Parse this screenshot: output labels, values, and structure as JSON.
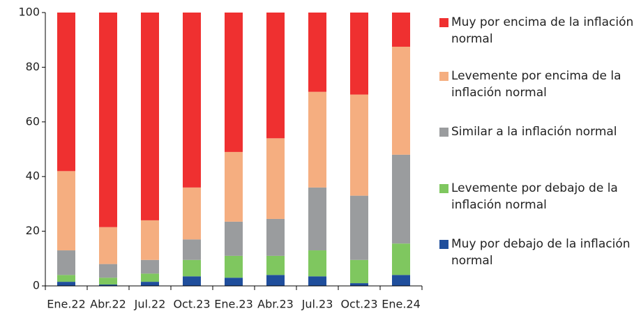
{
  "chart_data": {
    "type": "stacked_bar",
    "categories": [
      "Ene.22",
      "Abr.22",
      "Jul.22",
      "Oct.23",
      "Ene.23",
      "Abr.23",
      "Jul.23",
      "Oct.23",
      "Ene.24"
    ],
    "series": [
      {
        "name": "Muy por debajo de la inflación normal",
        "color": "#1f4e9c",
        "values": [
          1.5,
          0.5,
          1.5,
          3.5,
          3,
          4,
          3.5,
          1,
          4
        ]
      },
      {
        "name": "Levemente por debajo de la inflación normal",
        "color": "#7fc75f",
        "values": [
          2.5,
          2.5,
          3,
          6,
          8,
          7,
          9.5,
          8.5,
          11.5
        ]
      },
      {
        "name": "Similar a la inflación normal",
        "color": "#9a9c9e",
        "values": [
          9,
          5,
          5,
          7.5,
          12.5,
          13.5,
          23,
          23.5,
          32.5
        ]
      },
      {
        "name": "Levemente por encima de la inflación normal",
        "color": "#f5ae80",
        "values": [
          29,
          13.5,
          14.5,
          19,
          25.5,
          29.5,
          35,
          37,
          39.5
        ]
      },
      {
        "name": "Muy por encima de la inflación normal",
        "color": "#ef3030",
        "values": [
          58,
          78.5,
          76,
          64,
          51,
          46,
          29,
          30,
          12.5
        ]
      }
    ],
    "ylim": [
      0,
      100
    ],
    "yticks": [
      0,
      20,
      40,
      60,
      80,
      100
    ]
  }
}
